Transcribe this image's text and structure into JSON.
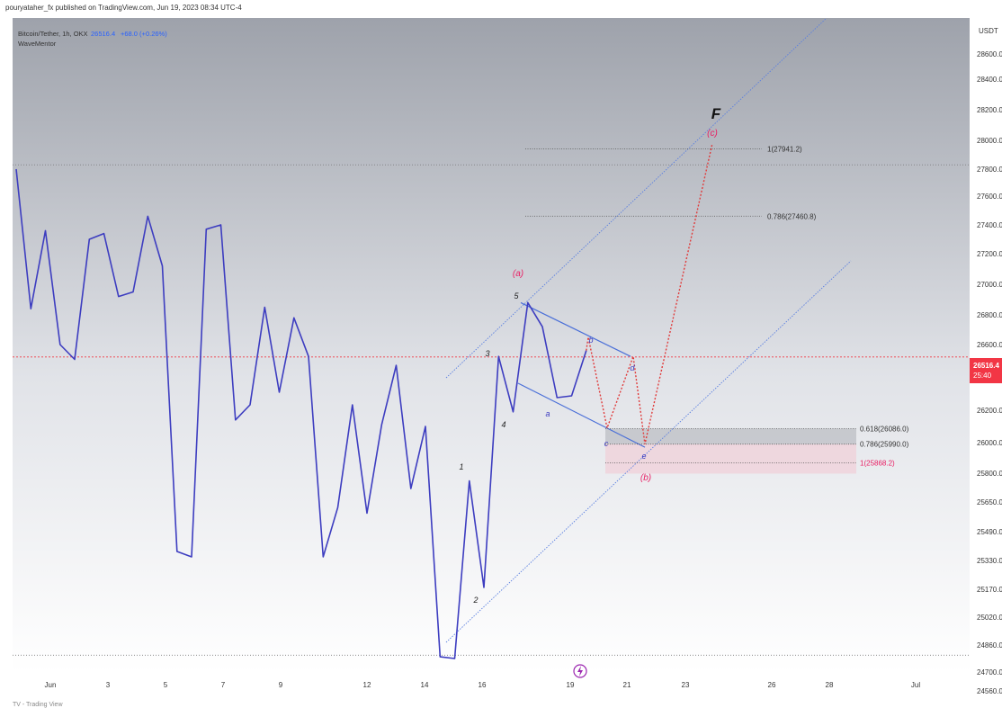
{
  "header": {
    "publish_line": "pouryataher_fx published on TradingView.com, Jun 19, 2023 08:34 UTC-4"
  },
  "legend": {
    "symbol": "Bitcoin/Tether, 1h, OKX",
    "price": "26516.4",
    "change": "+68.0 (+0.26%)",
    "indicator": "WaveMentor"
  },
  "axis": {
    "currency": "USDT",
    "current_price_label": "26516.4",
    "countdown_label": "25:40"
  },
  "colors": {
    "price_line": "#3d3dc0",
    "channel": "#5a7fe0",
    "wedge": "#4a6fd8",
    "projection": "#e03c3c",
    "fib_text": "#333333",
    "current_price": "#f23645",
    "wave_label_red": "#e91e63"
  },
  "footer": {
    "text": "TV - Trading View"
  },
  "chart_data": {
    "type": "line",
    "title": "",
    "x_tick_labels": [
      "Jun",
      "3",
      "5",
      "7",
      "9",
      "12",
      "14",
      "16",
      "19",
      "21",
      "23",
      "26",
      "28",
      "Jul"
    ],
    "y_ticks": [
      28600.0,
      28400.0,
      28200.0,
      28000.0,
      27800.0,
      27600.0,
      27400.0,
      27200.0,
      27000.0,
      26800.0,
      26600.0,
      26400.0,
      26200.0,
      26000.0,
      25800.0,
      25650.0,
      25490.0,
      25330.0,
      25170.0,
      25020.0,
      24860.0,
      24700.0,
      24560.0
    ],
    "y_tick_labels": [
      "28600.0",
      "28400.0",
      "28200.0",
      "28000.0",
      "27800.0",
      "27600.0",
      "27400.0",
      "27200.0",
      "27000.0",
      "26800.0",
      "26600.0",
      "26400.0",
      "26200.0",
      "26000.0",
      "25800.0",
      "25650.0",
      "25490.0",
      "25330.0",
      "25170.0",
      "25020.0",
      "24860.0",
      "24700.0",
      "24560.0"
    ],
    "series": [
      {
        "values": [
          [
            0,
            27800
          ],
          [
            0.5,
            26840
          ],
          [
            1,
            27360
          ],
          [
            1.5,
            26600
          ],
          [
            2,
            26500
          ],
          [
            2.5,
            27300
          ],
          [
            3,
            27340
          ],
          [
            3.5,
            26920
          ],
          [
            4,
            26950
          ],
          [
            4.5,
            27460
          ],
          [
            5,
            27120
          ],
          [
            5.5,
            25380
          ],
          [
            6,
            25350
          ],
          [
            6.5,
            27370
          ],
          [
            7,
            27400
          ],
          [
            7.5,
            26140
          ],
          [
            8,
            26230
          ],
          [
            8.5,
            26850
          ],
          [
            9,
            26300
          ],
          [
            9.5,
            26780
          ],
          [
            10,
            26520
          ],
          [
            10.5,
            25350
          ],
          [
            11,
            25620
          ],
          [
            11.5,
            26230
          ],
          [
            12,
            25590
          ],
          [
            12.5,
            26110
          ],
          [
            13,
            26460
          ],
          [
            13.5,
            25720
          ],
          [
            14,
            26100
          ],
          [
            14.5,
            24790
          ],
          [
            15,
            24780
          ],
          [
            15.5,
            25760
          ],
          [
            16,
            25180
          ],
          [
            16.5,
            26520
          ],
          [
            17,
            26190
          ],
          [
            17.5,
            26880
          ],
          [
            18,
            26720
          ],
          [
            18.5,
            26270
          ],
          [
            19,
            26280
          ],
          [
            19.5,
            26560
          ]
        ]
      }
    ],
    "projection": [
      [
        19.5,
        26560
      ],
      [
        20,
        26650
      ],
      [
        20.5,
        26090
      ],
      [
        21,
        26520
      ],
      [
        21.5,
        25990
      ],
      [
        23,
        27980
      ]
    ],
    "fib_levels": [
      {
        "label": "1(27941.2)",
        "value": 27941.2
      },
      {
        "label": "0.786(27460.8)",
        "value": 27460.8
      },
      {
        "label": "0.618(26086.0)",
        "value": 26086.0
      },
      {
        "label": "0.786(25990.0)",
        "value": 25990.0
      },
      {
        "label": "1(25868.2)",
        "value": 25868.2
      }
    ],
    "wave_labels": [
      "1",
      "2",
      "3",
      "4",
      "5",
      "a",
      "b",
      "c",
      "d",
      "e",
      "(a)",
      "(b)",
      "(c)",
      "F"
    ],
    "current_price": 26516.4,
    "grid": false
  }
}
